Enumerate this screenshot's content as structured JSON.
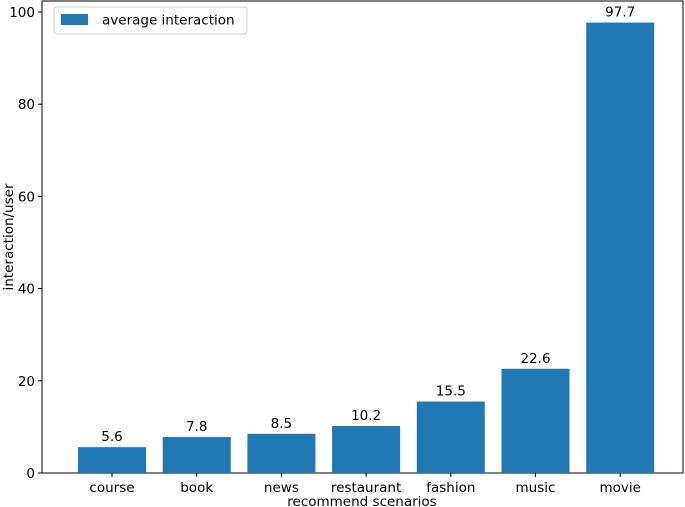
{
  "chart_data": {
    "type": "bar",
    "categories": [
      "course",
      "book",
      "news",
      "restaurant",
      "fashion",
      "music",
      "movie"
    ],
    "series": [
      {
        "name": "average interaction",
        "values": [
          5.6,
          7.8,
          8.5,
          10.2,
          15.5,
          22.6,
          97.7
        ],
        "labels": [
          "5.6",
          "7.8",
          "8.5",
          "10.2",
          "15.5",
          "22.6",
          "97.7"
        ],
        "color": "#1f77b4"
      }
    ],
    "title": "",
    "xlabel": "recommend scenarios",
    "ylabel": "interaction/user",
    "ylim": [
      0,
      100
    ],
    "yticks": [
      0,
      20,
      40,
      60,
      80,
      100
    ],
    "ytick_labels": [
      "0",
      "20",
      "40",
      "60",
      "80",
      "100"
    ],
    "grid": false,
    "legend": {
      "placement": "top-left",
      "entries": [
        "average interaction"
      ]
    }
  },
  "colors": {
    "bar": "#1f77b4",
    "axis": "#000000",
    "legend_border": "#cccccc"
  }
}
